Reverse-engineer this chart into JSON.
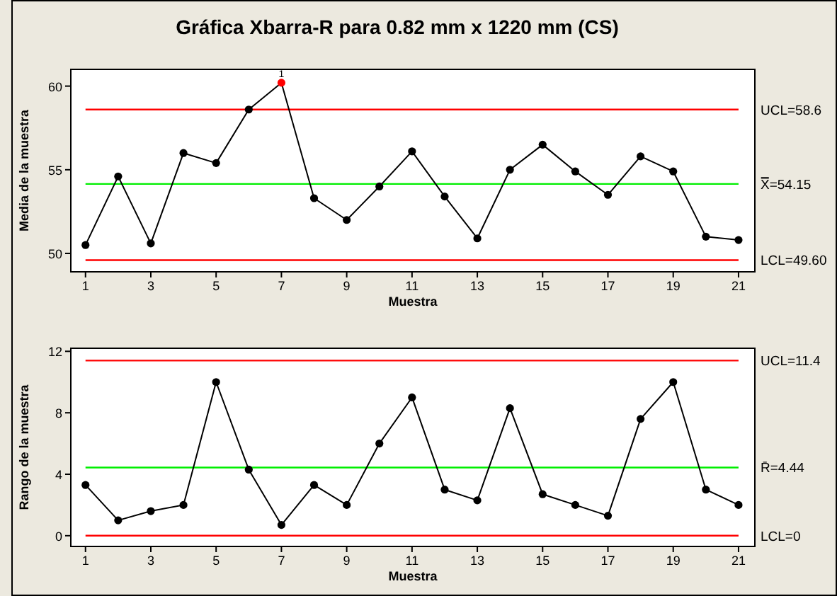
{
  "chart_data": [
    {
      "type": "line",
      "title": "Gráfica Xbarra-R para 0.82 mm x 1220 mm (CS)",
      "xlabel": "Muestra",
      "ylabel": "Media de la muestra",
      "x": [
        1,
        2,
        3,
        4,
        5,
        6,
        7,
        8,
        9,
        10,
        11,
        12,
        13,
        14,
        15,
        16,
        17,
        18,
        19,
        20,
        21
      ],
      "series": [
        {
          "color": "#000000",
          "colors": [
            "#000000",
            "#000000",
            "#000000",
            "#000000",
            "#000000",
            "#000000",
            "#ff0000",
            "#000000",
            "#000000",
            "#000000",
            "#000000",
            "#000000",
            "#000000",
            "#000000",
            "#000000",
            "#000000",
            "#000000",
            "#000000",
            "#000000",
            "#000000",
            "#000000"
          ],
          "values": [
            50.5,
            54.6,
            50.6,
            56.0,
            55.4,
            58.6,
            60.2,
            53.3,
            52.0,
            54.0,
            56.1,
            53.4,
            50.9,
            55.0,
            56.5,
            54.9,
            53.5,
            55.8,
            54.9,
            51.0,
            50.8
          ]
        }
      ],
      "xlim": [
        0.55,
        21.5
      ],
      "xticks": [
        1,
        3,
        5,
        7,
        9,
        11,
        13,
        15,
        17,
        19,
        21
      ],
      "ylim": [
        48.9,
        61
      ],
      "yticks": [
        50,
        55,
        60
      ],
      "marker": "circle",
      "ref_lines": [
        {
          "axis": "y",
          "value": 58.6,
          "label": "UCL=58.6",
          "color": "#ff0000"
        },
        {
          "axis": "y",
          "value": 54.15,
          "label": "X̿=54.15",
          "color": "#00ee00"
        },
        {
          "axis": "y",
          "value": 49.6,
          "label": "LCL=49.60",
          "color": "#ff0000"
        }
      ],
      "annotations": [
        {
          "text": "1",
          "x": 7,
          "y": 60.2
        }
      ]
    },
    {
      "type": "line",
      "xlabel": "Muestra",
      "ylabel": "Rango de la muestra",
      "x": [
        1,
        2,
        3,
        4,
        5,
        6,
        7,
        8,
        9,
        10,
        11,
        12,
        13,
        14,
        15,
        16,
        17,
        18,
        19,
        20,
        21
      ],
      "series": [
        {
          "color": "#000000",
          "values": [
            3.3,
            1.0,
            1.6,
            2.0,
            10.0,
            4.3,
            0.7,
            3.3,
            2.0,
            6.0,
            9.0,
            3.0,
            2.3,
            8.3,
            2.7,
            2.0,
            1.3,
            7.6,
            10.0,
            3.0,
            2.0
          ]
        }
      ],
      "xlim": [
        0.55,
        21.5
      ],
      "xticks": [
        1,
        3,
        5,
        7,
        9,
        11,
        13,
        15,
        17,
        19,
        21
      ],
      "ylim": [
        -0.7,
        12.2
      ],
      "yticks": [
        0,
        4,
        8,
        12
      ],
      "marker": "circle",
      "ref_lines": [
        {
          "axis": "y",
          "value": 11.4,
          "label": "UCL=11.4",
          "color": "#ff0000"
        },
        {
          "axis": "y",
          "value": 4.44,
          "label": "R̄=4.44",
          "color": "#00ee00"
        },
        {
          "axis": "y",
          "value": 0,
          "label": "LCL=0",
          "color": "#ff0000"
        }
      ]
    }
  ]
}
